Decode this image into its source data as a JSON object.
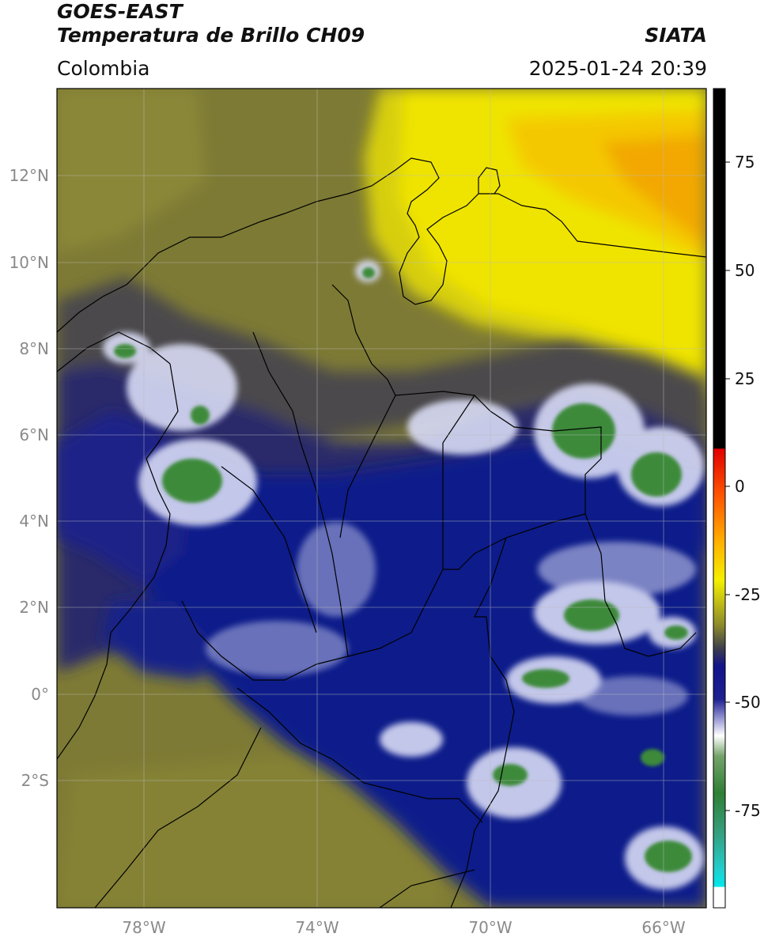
{
  "header": {
    "satellite": "GOES-EAST",
    "product": "Temperatura de Brillo CH09",
    "region": "Colombia",
    "agency": "SIATA",
    "datetime": "2025-01-24 20:39"
  },
  "map": {
    "lat_labels": [
      "12°N",
      "10°N",
      "8°N",
      "6°N",
      "4°N",
      "2°N",
      "0°",
      "2°S"
    ],
    "lon_labels": [
      "78°W",
      "74°W",
      "70°W",
      "66°W"
    ]
  },
  "colorbar": {
    "tick_labels": [
      "75",
      "50",
      "25",
      "0",
      "-25",
      "-50",
      "-75"
    ]
  },
  "colors": {
    "warm_yellow": "#f0e000",
    "orange": "#f2a800",
    "olive": "#7d7a35",
    "navy": "#111a8a",
    "cloud_white": "#eef0ff",
    "deep_green": "#3d8a3a"
  }
}
